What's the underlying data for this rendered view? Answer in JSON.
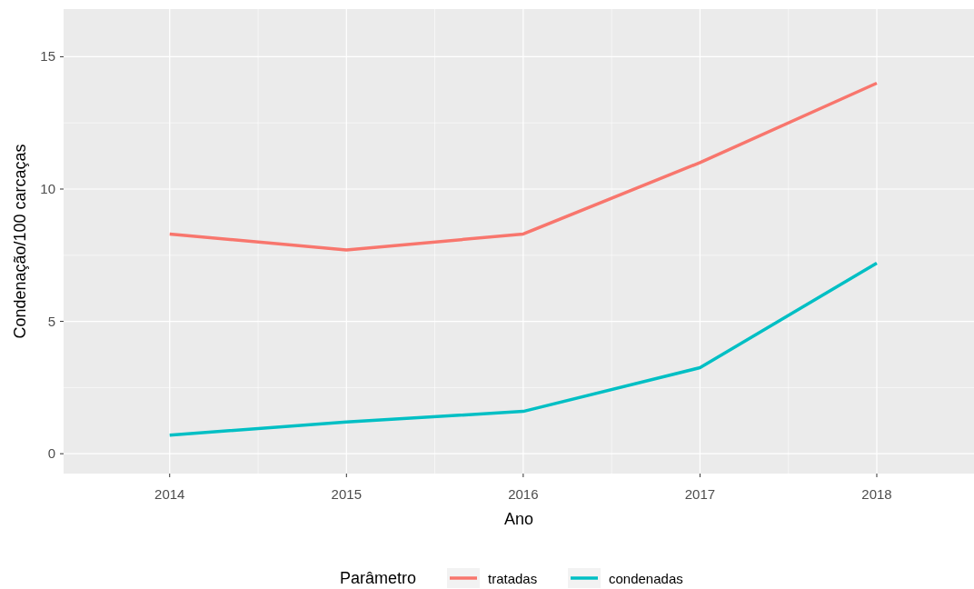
{
  "chart_data": {
    "type": "line",
    "xlabel": "Ano",
    "ylabel": "Condenação/100 carcaças",
    "legend_title": "Parâmetro",
    "x": [
      2014,
      2015,
      2016,
      2017,
      2018
    ],
    "series": [
      {
        "name": "tratadas",
        "color": "#f8766d",
        "values": [
          8.3,
          7.7,
          8.3,
          11.0,
          14.0
        ]
      },
      {
        "name": "condenadas",
        "color": "#00bfc4",
        "values": [
          0.7,
          1.2,
          1.6,
          3.25,
          7.2
        ]
      }
    ],
    "xlim": [
      2013.4,
      2018.55
    ],
    "ylim": [
      -0.75,
      16.8
    ],
    "xticks": [
      2014,
      2015,
      2016,
      2017,
      2018
    ],
    "yticks": [
      0,
      5,
      10,
      15
    ],
    "grid": true,
    "legend": "bottom",
    "line_style": "solid",
    "marker": "none"
  }
}
